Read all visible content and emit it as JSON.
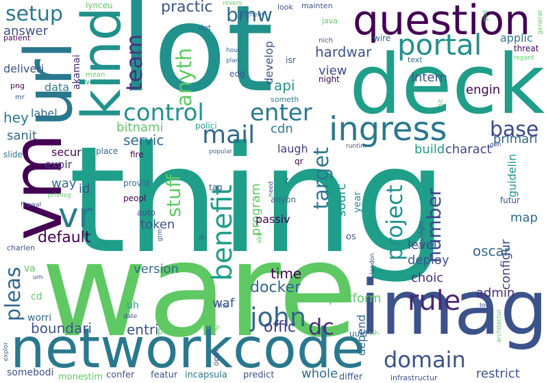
{
  "words": [
    {
      "text": "thing",
      "color": "#1f9e89"
    },
    {
      "text": "ware",
      "color": "#5ec962"
    },
    {
      "text": "lot",
      "color": "#21918c"
    },
    {
      "text": "deck",
      "color": "#1f9e89"
    },
    {
      "text": "imag",
      "color": "#3b528b"
    },
    {
      "text": "networkcode",
      "color": "#2a788e"
    },
    {
      "text": "question",
      "color": "#440154"
    },
    {
      "text": "ingress",
      "color": "#2a788e"
    },
    {
      "text": "url",
      "color": "#2a788e"
    },
    {
      "text": "vm",
      "color": "#440154"
    },
    {
      "text": "kind",
      "color": "#21918c"
    },
    {
      "text": "vr",
      "color": "#2a788e"
    },
    {
      "text": "portal",
      "color": "#21918c"
    },
    {
      "text": "project",
      "color": "#21918c"
    },
    {
      "text": "control",
      "color": "#21918c"
    },
    {
      "text": "enter",
      "color": "#2a788e"
    },
    {
      "text": "mail",
      "color": "#31688e"
    },
    {
      "text": "base",
      "color": "#3e4989"
    },
    {
      "text": "team",
      "color": "#46327e"
    },
    {
      "text": "domain",
      "color": "#3b528b"
    },
    {
      "text": "benefit",
      "color": "#1f9e89"
    },
    {
      "text": "rule",
      "color": "#482878"
    },
    {
      "text": "john",
      "color": "#31688e"
    },
    {
      "text": "number",
      "color": "#3e4989"
    },
    {
      "text": "target",
      "color": "#2a788e"
    },
    {
      "text": "pleas",
      "color": "#31688e"
    },
    {
      "text": "stuff",
      "color": "#5ec962"
    },
    {
      "text": "anyth",
      "color": "#5ec962"
    },
    {
      "text": "setup",
      "color": "#2a788e"
    },
    {
      "text": "bmw",
      "color": "#31688e"
    },
    {
      "text": "practic",
      "color": "#3b528b"
    },
    {
      "text": "offic",
      "color": "#443983"
    },
    {
      "text": "dc",
      "color": "#46327e"
    },
    {
      "text": "docker",
      "color": "#31688e"
    },
    {
      "text": "default",
      "color": "#440154"
    },
    {
      "text": "boundari",
      "color": "#3b528b"
    },
    {
      "text": "entri",
      "color": "#3b528b"
    },
    {
      "text": "whole",
      "color": "#31688e"
    },
    {
      "text": "restrict",
      "color": "#3b528b"
    },
    {
      "text": "configur",
      "color": "#3e4989"
    },
    {
      "text": "admin",
      "color": "#482878"
    },
    {
      "text": "platform",
      "color": "#5ec962"
    },
    {
      "text": "hardwar",
      "color": "#3b528b"
    },
    {
      "text": "program",
      "color": "#5ec962"
    },
    {
      "text": "sourc",
      "color": "#21918c"
    },
    {
      "text": "waf",
      "color": "#3b528b"
    },
    {
      "text": "time",
      "color": "#440154"
    },
    {
      "text": "version",
      "color": "#31688e"
    },
    {
      "text": "deploy",
      "color": "#3b528b"
    },
    {
      "text": "level",
      "color": "#3e4989"
    },
    {
      "text": "oscar",
      "color": "#31688e"
    },
    {
      "text": "choic",
      "color": "#482878"
    },
    {
      "text": "depend",
      "color": "#31688e"
    },
    {
      "text": "servic",
      "color": "#31688e"
    },
    {
      "text": "bitnami",
      "color": "#5ec962"
    },
    {
      "text": "answer",
      "color": "#3b528b"
    },
    {
      "text": "intern",
      "color": "#3b528b"
    },
    {
      "text": "view",
      "color": "#3e4989"
    },
    {
      "text": "api",
      "color": "#21918c"
    },
    {
      "text": "develop",
      "color": "#3b528b"
    },
    {
      "text": "engin",
      "color": "#440154"
    },
    {
      "text": "primari",
      "color": "#31688e"
    },
    {
      "text": "charact",
      "color": "#3e4989"
    },
    {
      "text": "build",
      "color": "#1f9e89"
    },
    {
      "text": "map",
      "color": "#31688e"
    },
    {
      "text": "guidelin",
      "color": "#21918c"
    },
    {
      "text": "hey",
      "color": "#2a788e"
    },
    {
      "text": "label",
      "color": "#31688e"
    },
    {
      "text": "sanit",
      "color": "#31688e"
    },
    {
      "text": "secur",
      "color": "#440154"
    },
    {
      "text": "expir",
      "color": "#443983"
    },
    {
      "text": "way",
      "color": "#31688e"
    },
    {
      "text": "id",
      "color": "#3b528b"
    },
    {
      "text": "cdn",
      "color": "#2a788e"
    },
    {
      "text": "token",
      "color": "#3b528b"
    },
    {
      "text": "passiv",
      "color": "#440154"
    },
    {
      "text": "laugh",
      "color": "#443983"
    },
    {
      "text": "year",
      "color": "#21918c"
    },
    {
      "text": "akamai",
      "color": "#482878"
    },
    {
      "text": "data",
      "color": "#2a788e"
    },
    {
      "text": "deliveri",
      "color": "#3b528b"
    },
    {
      "text": "applic",
      "color": "#2a788e"
    },
    {
      "text": "futur",
      "color": "#3b528b"
    },
    {
      "text": "uuid",
      "color": "#31688e"
    },
    {
      "text": "worri",
      "color": "#31688e"
    },
    {
      "text": "uh",
      "color": "#1f9e89"
    },
    {
      "text": "va",
      "color": "#5ec962"
    },
    {
      "text": "cd",
      "color": "#5ec962"
    },
    {
      "text": "prevent",
      "color": "#5ec962"
    },
    {
      "text": "somebodi",
      "color": "#3b528b"
    },
    {
      "text": "monestim",
      "color": "#5ec962"
    },
    {
      "text": "confer",
      "color": "#3b528b"
    },
    {
      "text": "featur",
      "color": "#3b528b"
    },
    {
      "text": "incapsula",
      "color": "#2a788e"
    },
    {
      "text": "predict",
      "color": "#3b528b"
    },
    {
      "text": "differ",
      "color": "#3b528b"
    },
    {
      "text": "infrastructur",
      "color": "#3b528b"
    },
    {
      "text": "lynceu",
      "color": "#5ec962"
    },
    {
      "text": "wire",
      "color": "#31688e"
    },
    {
      "text": "look",
      "color": "#3b528b"
    },
    {
      "text": "mainten",
      "color": "#3b528b"
    },
    {
      "text": "java",
      "color": "#5ec962"
    },
    {
      "text": "patient",
      "color": "#440154"
    },
    {
      "text": "threat",
      "color": "#440154"
    },
    {
      "text": "nich",
      "color": "#3b528b"
    },
    {
      "text": "text",
      "color": "#31688e"
    },
    {
      "text": "night",
      "color": "#440154"
    },
    {
      "text": "isr",
      "color": "#3b528b"
    },
    {
      "text": "dot",
      "color": "#31688e"
    },
    {
      "text": "authent",
      "color": "#31688e"
    },
    {
      "text": "png",
      "color": "#440154"
    },
    {
      "text": "mean",
      "color": "#5ec962"
    },
    {
      "text": "vehicl",
      "color": "#1f9e89"
    },
    {
      "text": "edg",
      "color": "#3b528b"
    },
    {
      "text": "plan",
      "color": "#31688e"
    },
    {
      "text": "hous",
      "color": "#31688e"
    },
    {
      "text": "center",
      "color": "#31688e"
    },
    {
      "text": "someth",
      "color": "#2a788e"
    },
    {
      "text": "mr",
      "color": "#3b528b"
    },
    {
      "text": "polici",
      "color": "#1f9e89"
    },
    {
      "text": "slide",
      "color": "#2a788e"
    },
    {
      "text": "place",
      "color": "#31688e"
    },
    {
      "text": "fire",
      "color": "#440154"
    },
    {
      "text": "popular",
      "color": "#31688e"
    },
    {
      "text": "runtim",
      "color": "#3b528b"
    },
    {
      "text": "qr",
      "color": "#440154"
    },
    {
      "text": "gon",
      "color": "#3b528b"
    },
    {
      "text": "provid",
      "color": "#31688e"
    },
    {
      "text": "tag",
      "color": "#3b528b"
    },
    {
      "text": "peopl",
      "color": "#440154"
    },
    {
      "text": "anyon",
      "color": "#31688e"
    },
    {
      "text": "auto",
      "color": "#3b528b"
    },
    {
      "text": "privileg",
      "color": "#5ec962"
    },
    {
      "text": "firewal",
      "color": "#3b528b"
    },
    {
      "text": "charlen",
      "color": "#3b528b"
    },
    {
      "text": "dn",
      "color": "#3b528b"
    },
    {
      "text": "line",
      "color": "#31688e"
    },
    {
      "text": "integr",
      "color": "#5ec962"
    },
    {
      "text": "date",
      "color": "#3b528b"
    },
    {
      "text": "explor",
      "color": "#31688e"
    },
    {
      "text": "um",
      "color": "#3b528b"
    },
    {
      "text": "regard",
      "color": "#5ec962"
    },
    {
      "text": "god",
      "color": "#5ec962"
    },
    {
      "text": "generat",
      "color": "#5ec962"
    },
    {
      "text": "hit",
      "color": "#5ec962"
    },
    {
      "text": "tool",
      "color": "#3b528b"
    },
    {
      "text": "ssh",
      "color": "#5ec962"
    },
    {
      "text": "revers",
      "color": "#5ec962"
    },
    {
      "text": "need",
      "color": "#3b528b"
    },
    {
      "text": "rv",
      "color": "#3b528b"
    },
    {
      "text": "gtm",
      "color": "#3b528b"
    },
    {
      "text": "abil",
      "color": "#5ec962"
    },
    {
      "text": "os",
      "color": "#3b528b"
    },
    {
      "text": "landon",
      "color": "#3b528b"
    },
    {
      "text": "flashlight",
      "color": "#3b528b"
    },
    {
      "text": "architectur",
      "color": "#5ec962"
    },
    {
      "text": "oper",
      "color": "#3b528b"
    }
  ]
}
